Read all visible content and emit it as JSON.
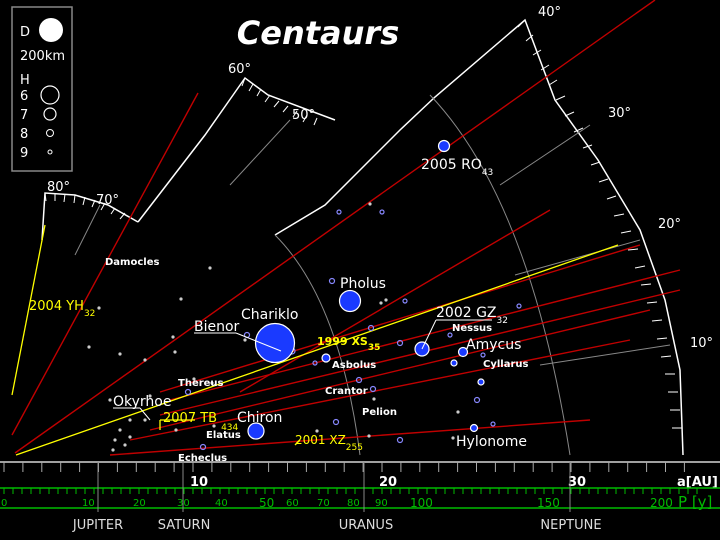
{
  "title": "Centaurs",
  "legend": {
    "d_label": "D",
    "d_value": "200km",
    "h_label": "H",
    "h_values": [
      "6",
      "7",
      "8",
      "9"
    ]
  },
  "angle_labels": [
    "10°",
    "20°",
    "30°",
    "40°",
    "50°",
    "60°",
    "70°",
    "80°"
  ],
  "axis_a": {
    "label": "a[AU]",
    "ticks": [
      "10",
      "20",
      "30"
    ]
  },
  "axis_p": {
    "label": "P [y]",
    "ticks": [
      "0",
      "10",
      "20",
      "30",
      "40",
      "50",
      "60",
      "70",
      "80",
      "90",
      "100",
      "150",
      "200"
    ]
  },
  "planets": [
    "JUPITER",
    "SATURN",
    "URANUS",
    "NEPTUNE"
  ],
  "objects": [
    {
      "name": "2005 RO",
      "sub": "43",
      "color": "white"
    },
    {
      "name": "Pholus",
      "color": "white"
    },
    {
      "name": "Chariklo",
      "color": "white"
    },
    {
      "name": "Bienor",
      "color": "white"
    },
    {
      "name": "2002 GZ",
      "sub": "32",
      "color": "white"
    },
    {
      "name": "Nessus",
      "color": "white"
    },
    {
      "name": "Amycus",
      "color": "white"
    },
    {
      "name": "Cyllarus",
      "color": "white"
    },
    {
      "name": "1999 XS",
      "sub": "35",
      "color": "yellow"
    },
    {
      "name": "Asbolus",
      "color": "white"
    },
    {
      "name": "Thereus",
      "color": "white"
    },
    {
      "name": "Crantor",
      "color": "white"
    },
    {
      "name": "Pelion",
      "color": "white"
    },
    {
      "name": "Okyrhoe",
      "color": "white"
    },
    {
      "name": "2007 TB",
      "sub": "434",
      "color": "yellow"
    },
    {
      "name": "Chiron",
      "color": "white"
    },
    {
      "name": "Elatus",
      "color": "white"
    },
    {
      "name": "2001 XZ",
      "sub": "255",
      "color": "yellow"
    },
    {
      "name": "Echeclus",
      "color": "white"
    },
    {
      "name": "Hylonome",
      "color": "white"
    },
    {
      "name": "Damocles",
      "color": "white"
    },
    {
      "name": "2004 YH",
      "sub": "32",
      "color": "yellow"
    }
  ]
}
